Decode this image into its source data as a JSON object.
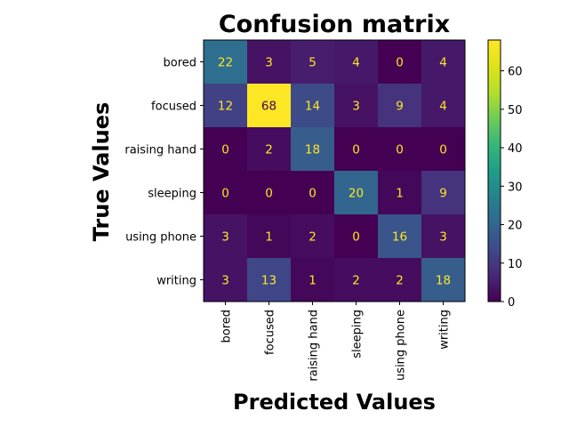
{
  "chart_data": {
    "type": "heatmap",
    "title": "Confusion matrix",
    "xlabel": "Predicted Values",
    "ylabel": "True Values",
    "x_categories": [
      "bored",
      "focused",
      "raising hand",
      "sleeping",
      "using phone",
      "writing"
    ],
    "y_categories": [
      "bored",
      "focused",
      "raising hand",
      "sleeping",
      "using phone",
      "writing"
    ],
    "values": [
      [
        22,
        3,
        5,
        4,
        0,
        4
      ],
      [
        12,
        68,
        14,
        3,
        9,
        4
      ],
      [
        0,
        2,
        18,
        0,
        0,
        0
      ],
      [
        0,
        0,
        0,
        20,
        1,
        9
      ],
      [
        3,
        1,
        2,
        0,
        16,
        3
      ],
      [
        3,
        13,
        1,
        2,
        2,
        18
      ]
    ],
    "colormap": "viridis",
    "colorbar": {
      "range": [
        0,
        68
      ],
      "ticks": [
        0,
        10,
        20,
        30,
        40,
        50,
        60
      ]
    },
    "cell_text_colors": {
      "on_dark": "#fde725",
      "on_light": "#440154"
    }
  }
}
